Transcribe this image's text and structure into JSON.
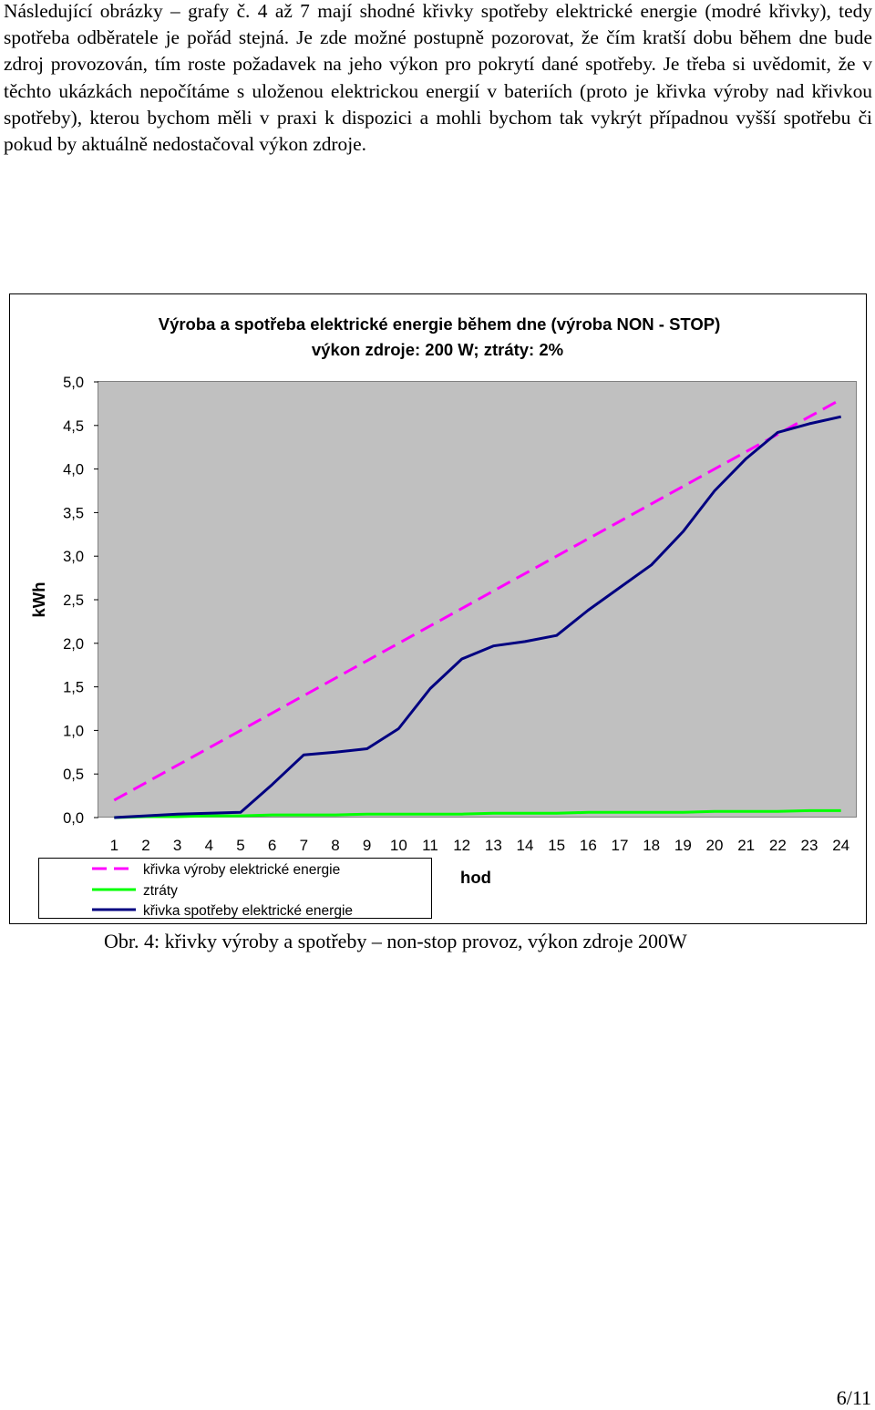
{
  "intro_paragraph": "Následující obrázky – grafy č. 4 až 7 mají shodné křivky spotřeby elektrické energie (modré křivky), tedy spotřeba odběratele je pořád stejná. Je zde možné postupně pozorovat, že čím kratší dobu během dne bude zdroj provozován, tím roste požadavek na jeho výkon pro pokrytí dané spotřeby. Je třeba si uvědomit, že v těchto ukázkách nepočítáme s uloženou elektrickou energií v bateriích (proto je křivka výroby nad křivkou spotřeby), kterou bychom měli v praxi k dispozici a mohli bychom tak vykrýt případnou vyšší spotřebu či pokud by aktuálně nedostačoval výkon zdroje.",
  "figure_caption": "Obr. 4: křivky výroby a spotřeby – non-stop provoz, výkon zdroje 200W",
  "page_number": "6/11",
  "colors": {
    "plot_background": "#c0c0c0",
    "production": "#ff00ff",
    "losses": "#00ff00",
    "consumption": "#000080"
  },
  "chart_data": {
    "type": "line",
    "title": "Výroba a spotřeba elektrické energie během dne (výroba NON - STOP)",
    "subtitle": "výkon zdroje: 200 W; ztráty: 2%",
    "xlabel": "hod",
    "ylabel": "kWh",
    "ylim": [
      0,
      5
    ],
    "ytick_step": 0.5,
    "ytick_labels": [
      "0,0",
      "0,5",
      "1,0",
      "1,5",
      "2,0",
      "2,5",
      "3,0",
      "3,5",
      "4,0",
      "4,5",
      "5,0"
    ],
    "x": [
      1,
      2,
      3,
      4,
      5,
      6,
      7,
      8,
      9,
      10,
      11,
      12,
      13,
      14,
      15,
      16,
      17,
      18,
      19,
      20,
      21,
      22,
      23,
      24
    ],
    "grid": false,
    "legend_position": "bottom-left",
    "series": [
      {
        "name": "křivka výroby elektrické energie",
        "style": "dashed",
        "values": [
          0.2,
          0.4,
          0.6,
          0.8,
          1.0,
          1.2,
          1.4,
          1.6,
          1.8,
          2.0,
          2.2,
          2.4,
          2.6,
          2.8,
          3.0,
          3.2,
          3.4,
          3.6,
          3.8,
          4.0,
          4.2,
          4.4,
          4.6,
          4.8
        ]
      },
      {
        "name": "ztráty",
        "style": "solid",
        "values": [
          0.0,
          0.01,
          0.01,
          0.02,
          0.02,
          0.03,
          0.03,
          0.03,
          0.04,
          0.04,
          0.04,
          0.04,
          0.05,
          0.05,
          0.05,
          0.06,
          0.06,
          0.06,
          0.06,
          0.07,
          0.07,
          0.07,
          0.08,
          0.08
        ]
      },
      {
        "name": "křivka spotřeby elektrické energie",
        "style": "solid",
        "values": [
          0.0,
          0.02,
          0.04,
          0.05,
          0.06,
          0.38,
          0.72,
          0.75,
          0.79,
          1.02,
          1.48,
          1.82,
          1.97,
          2.02,
          2.09,
          2.38,
          2.64,
          2.9,
          3.28,
          3.75,
          4.12,
          4.42,
          4.52,
          4.6
        ]
      }
    ]
  }
}
